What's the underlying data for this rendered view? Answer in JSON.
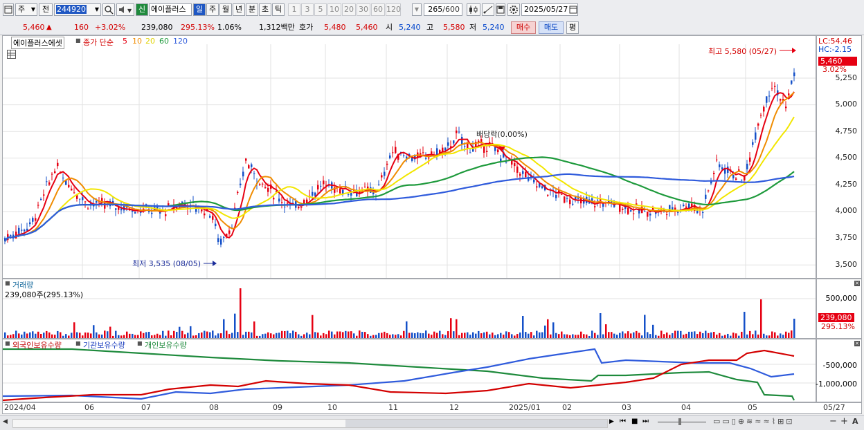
{
  "toolbar": {
    "period_type": "주",
    "prev_label": "전",
    "stock_code": "244920",
    "new_badge": "신",
    "stock_name": "에이플러스",
    "periods": [
      "일",
      "주",
      "월",
      "년",
      "분",
      "초",
      "틱"
    ],
    "active_period": "일",
    "intervals": [
      "1",
      "3",
      "5",
      "10",
      "20",
      "30",
      "60",
      "120"
    ],
    "count": "265",
    "count_total": "/600",
    "date": "2025/05/27"
  },
  "quote": {
    "price": "5,460",
    "change": "160",
    "change_pct": "+3.02%",
    "volume": "239,080",
    "volume_pct": "295.13%",
    "turnover_pct": "1.06%",
    "amount": "1,312백만",
    "ask_label": "호가",
    "ask1": "5,480",
    "ask2": "5,460",
    "open_label": "시",
    "open": "5,240",
    "high_label": "고",
    "high": "5,580",
    "low_label": "저",
    "low": "5,240",
    "buy_label": "매수",
    "sell_label": "매도",
    "eval_label": "평"
  },
  "price_panel": {
    "stock_label": "에이플러스에셋",
    "ma_title": "종가 단순",
    "ma_periods": [
      "5",
      "10",
      "20",
      "60",
      "120"
    ],
    "lc_label": "LC:54.46",
    "hc_label": "HC:-2.15",
    "current_price_tag": "5,460",
    "current_change_tag": "3.02%",
    "high_annotation": "최고 5,580 (05/27)",
    "low_annotation": "최저 3,535 (08/05)",
    "dividend_annotation": "배당락(0.00%)",
    "y_ticks": [
      "5,250",
      "5,000",
      "4,750",
      "4,500",
      "4,250",
      "4,000",
      "3,750",
      "3,500"
    ]
  },
  "volume_panel": {
    "title": "거래량",
    "value_label": "239,080주(295.13%)",
    "y_ticks": [
      "500,000"
    ],
    "current_tag": "239,080",
    "current_pct_tag": "295.13%"
  },
  "holding_panel": {
    "legends": [
      "외국인보유수량",
      "기관보유수량",
      "개인보유수량"
    ],
    "y_ticks": [
      "-500,000",
      "-1,000,000"
    ]
  },
  "x_axis": {
    "labels": [
      "2024/04",
      "06",
      "07",
      "08",
      "09",
      "10",
      "11",
      "12",
      "2025/01",
      "02",
      "03",
      "04",
      "05"
    ],
    "last_label": "05/27"
  },
  "colors": {
    "ma5": "#e60012",
    "ma10": "#f08c00",
    "ma20": "#f2e600",
    "ma60": "#1e9a3c",
    "ma120": "#2f5bdc",
    "up": "#e60012",
    "down": "#1450c8"
  },
  "icons": [
    "window-icon",
    "search-icon",
    "sound-icon",
    "candle-icon",
    "line-tool-icon",
    "save-icon",
    "gear-icon",
    "calendar-icon",
    "table-icon",
    "play-icon",
    "stop-icon",
    "zoom-in-icon",
    "zoom-out-icon"
  ]
}
